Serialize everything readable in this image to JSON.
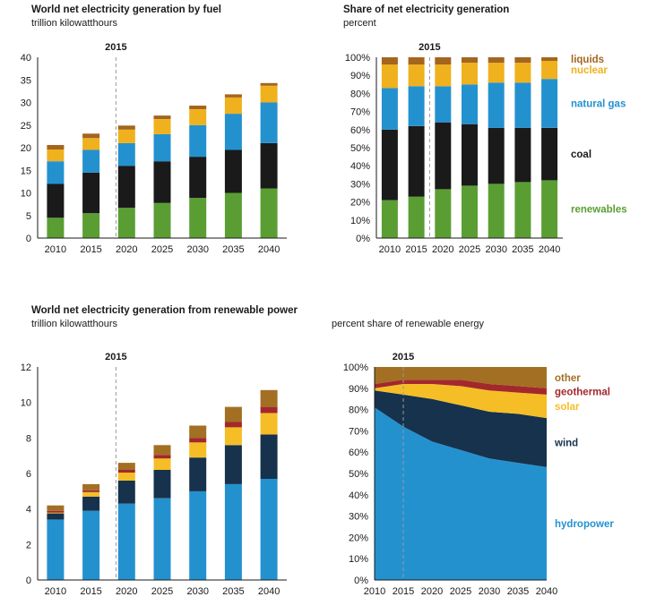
{
  "chart_data": [
    {
      "type": "bar",
      "title": "World net electricity generation by fuel",
      "subtitle": "trillion kilowatthours",
      "divider_label": "2015",
      "categories": [
        "2010",
        "2015",
        "2020",
        "2025",
        "2030",
        "2035",
        "2040"
      ],
      "ylim": [
        0,
        40
      ],
      "yticks": [
        "0",
        "5",
        "10",
        "15",
        "20",
        "25",
        "30",
        "35",
        "40"
      ],
      "legend_side": false,
      "series": [
        {
          "name": "renewables",
          "color": "#5A9E33",
          "values": [
            4.5,
            5.5,
            6.7,
            7.8,
            8.9,
            10.0,
            11.0
          ]
        },
        {
          "name": "coal",
          "color": "#1A1A1A",
          "values": [
            7.5,
            9.0,
            9.3,
            9.2,
            9.1,
            9.5,
            10.0
          ]
        },
        {
          "name": "natural gas",
          "color": "#2491CF",
          "values": [
            5.0,
            5.0,
            5.0,
            6.0,
            7.0,
            8.0,
            9.0
          ]
        },
        {
          "name": "nuclear",
          "color": "#EFB11D",
          "values": [
            2.6,
            2.6,
            3.0,
            3.3,
            3.5,
            3.6,
            3.7
          ]
        },
        {
          "name": "liquids",
          "color": "#A4651E",
          "values": [
            1.0,
            1.0,
            0.9,
            0.8,
            0.8,
            0.7,
            0.6
          ]
        }
      ]
    },
    {
      "type": "bar",
      "title": "Share of net electricity generation",
      "subtitle": "percent",
      "divider_label": "2015",
      "categories": [
        "2010",
        "2015",
        "2020",
        "2025",
        "2030",
        "2035",
        "2040"
      ],
      "ylim": [
        0,
        100
      ],
      "yticks": [
        "0%",
        "10%",
        "20%",
        "30%",
        "40%",
        "50%",
        "60%",
        "70%",
        "80%",
        "90%",
        "100%"
      ],
      "legend_side": true,
      "series": [
        {
          "name": "renewables",
          "color": "#5A9E33",
          "values": [
            21,
            23,
            27,
            29,
            30,
            31,
            32
          ]
        },
        {
          "name": "coal",
          "color": "#1A1A1A",
          "values": [
            39,
            39,
            37,
            34,
            31,
            30,
            29
          ]
        },
        {
          "name": "natural gas",
          "color": "#2491CF",
          "values": [
            23,
            22,
            20,
            22,
            25,
            25,
            27
          ]
        },
        {
          "name": "nuclear",
          "color": "#EFB11D",
          "values": [
            13,
            12,
            12,
            12,
            11,
            11,
            10
          ]
        },
        {
          "name": "liquids",
          "color": "#A4651E",
          "values": [
            4,
            4,
            4,
            3,
            3,
            3,
            2
          ]
        }
      ]
    },
    {
      "type": "bar",
      "title": "World net electricity generation from renewable power",
      "subtitle": "trillion kilowatthours",
      "divider_label": "2015",
      "categories": [
        "2010",
        "2015",
        "2020",
        "2025",
        "2030",
        "2035",
        "2040"
      ],
      "ylim": [
        0,
        12
      ],
      "yticks": [
        "0",
        "2",
        "4",
        "6",
        "8",
        "10",
        "12"
      ],
      "legend_side": false,
      "series": [
        {
          "name": "hydropower",
          "color": "#2491CF",
          "values": [
            3.4,
            3.9,
            4.3,
            4.6,
            5.0,
            5.4,
            5.7
          ]
        },
        {
          "name": "wind",
          "color": "#16324C",
          "values": [
            0.35,
            0.8,
            1.3,
            1.6,
            1.9,
            2.2,
            2.5
          ]
        },
        {
          "name": "solar",
          "color": "#F5BE26",
          "values": [
            0.05,
            0.25,
            0.45,
            0.65,
            0.85,
            1.0,
            1.2
          ]
        },
        {
          "name": "geothermal",
          "color": "#A3282B",
          "values": [
            0.1,
            0.1,
            0.15,
            0.2,
            0.25,
            0.3,
            0.35
          ]
        },
        {
          "name": "other",
          "color": "#A36F23",
          "values": [
            0.3,
            0.35,
            0.4,
            0.55,
            0.7,
            0.85,
            0.95
          ]
        }
      ]
    },
    {
      "type": "area",
      "title": "",
      "subtitle": "percent share of renewable energy",
      "divider_label": "2015",
      "categories": [
        "2010",
        "2015",
        "2020",
        "2025",
        "2030",
        "2035",
        "2040"
      ],
      "ylim": [
        0,
        100
      ],
      "yticks": [
        "0%",
        "10%",
        "20%",
        "30%",
        "40%",
        "50%",
        "60%",
        "70%",
        "80%",
        "90%",
        "100%"
      ],
      "legend_side": true,
      "series": [
        {
          "name": "hydropower",
          "color": "#2491CF",
          "values": [
            81,
            72,
            65,
            61,
            57,
            55,
            53
          ]
        },
        {
          "name": "wind",
          "color": "#16324C",
          "values": [
            8,
            15,
            20,
            21,
            22,
            23,
            23
          ]
        },
        {
          "name": "solar",
          "color": "#F5BE26",
          "values": [
            1,
            5,
            7,
            9,
            10,
            10,
            11
          ]
        },
        {
          "name": "geothermal",
          "color": "#A3282B",
          "values": [
            2,
            2,
            2,
            3,
            3,
            3,
            3
          ]
        },
        {
          "name": "other",
          "color": "#A36F23",
          "values": [
            8,
            6,
            6,
            6,
            8,
            9,
            10
          ]
        }
      ]
    }
  ]
}
